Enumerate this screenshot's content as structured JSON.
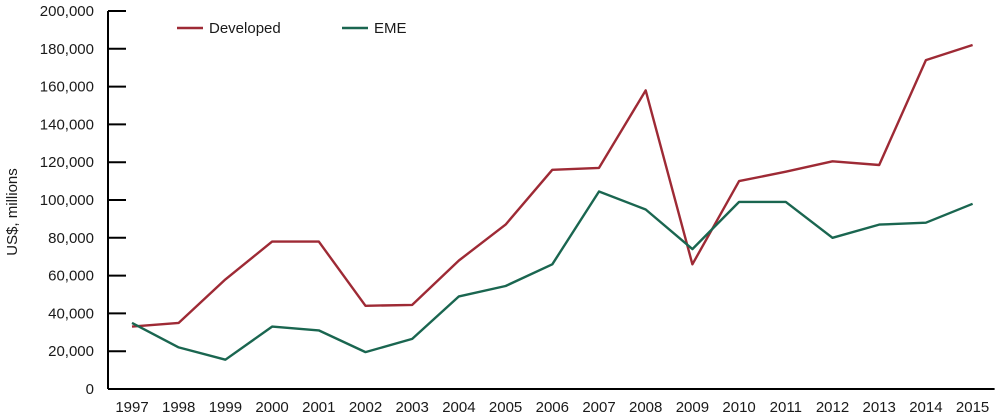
{
  "chart_data": {
    "type": "line",
    "title": "",
    "xlabel": "",
    "ylabel": "US$, millions",
    "ylim": [
      0,
      200000
    ],
    "yticks": [
      "0",
      "20,000",
      "40,000",
      "60,000",
      "80,000",
      "100,000",
      "120,000",
      "140,000",
      "160,000",
      "180,000",
      "200,000"
    ],
    "categories": [
      "1997",
      "1998",
      "1999",
      "2000",
      "2001",
      "2002",
      "2003",
      "2004",
      "2005",
      "2006",
      "2007",
      "2008",
      "2009",
      "2010",
      "2011",
      "2012",
      "2013",
      "2014",
      "2015"
    ],
    "series": [
      {
        "name": "Developed",
        "color": "#9e2a35",
        "values": [
          33000,
          35000,
          58000,
          78000,
          78000,
          44000,
          44500,
          68000,
          87000,
          116000,
          117000,
          158000,
          66000,
          110000,
          115000,
          120500,
          118500,
          174000,
          182000
        ]
      },
      {
        "name": "EME",
        "color": "#1a6650",
        "values": [
          35000,
          22000,
          15500,
          33000,
          31000,
          19500,
          26500,
          49000,
          54500,
          66000,
          104500,
          95000,
          74000,
          99000,
          99000,
          80000,
          87000,
          88000,
          98000
        ]
      }
    ],
    "grid": false,
    "legend_position": "top-left"
  }
}
